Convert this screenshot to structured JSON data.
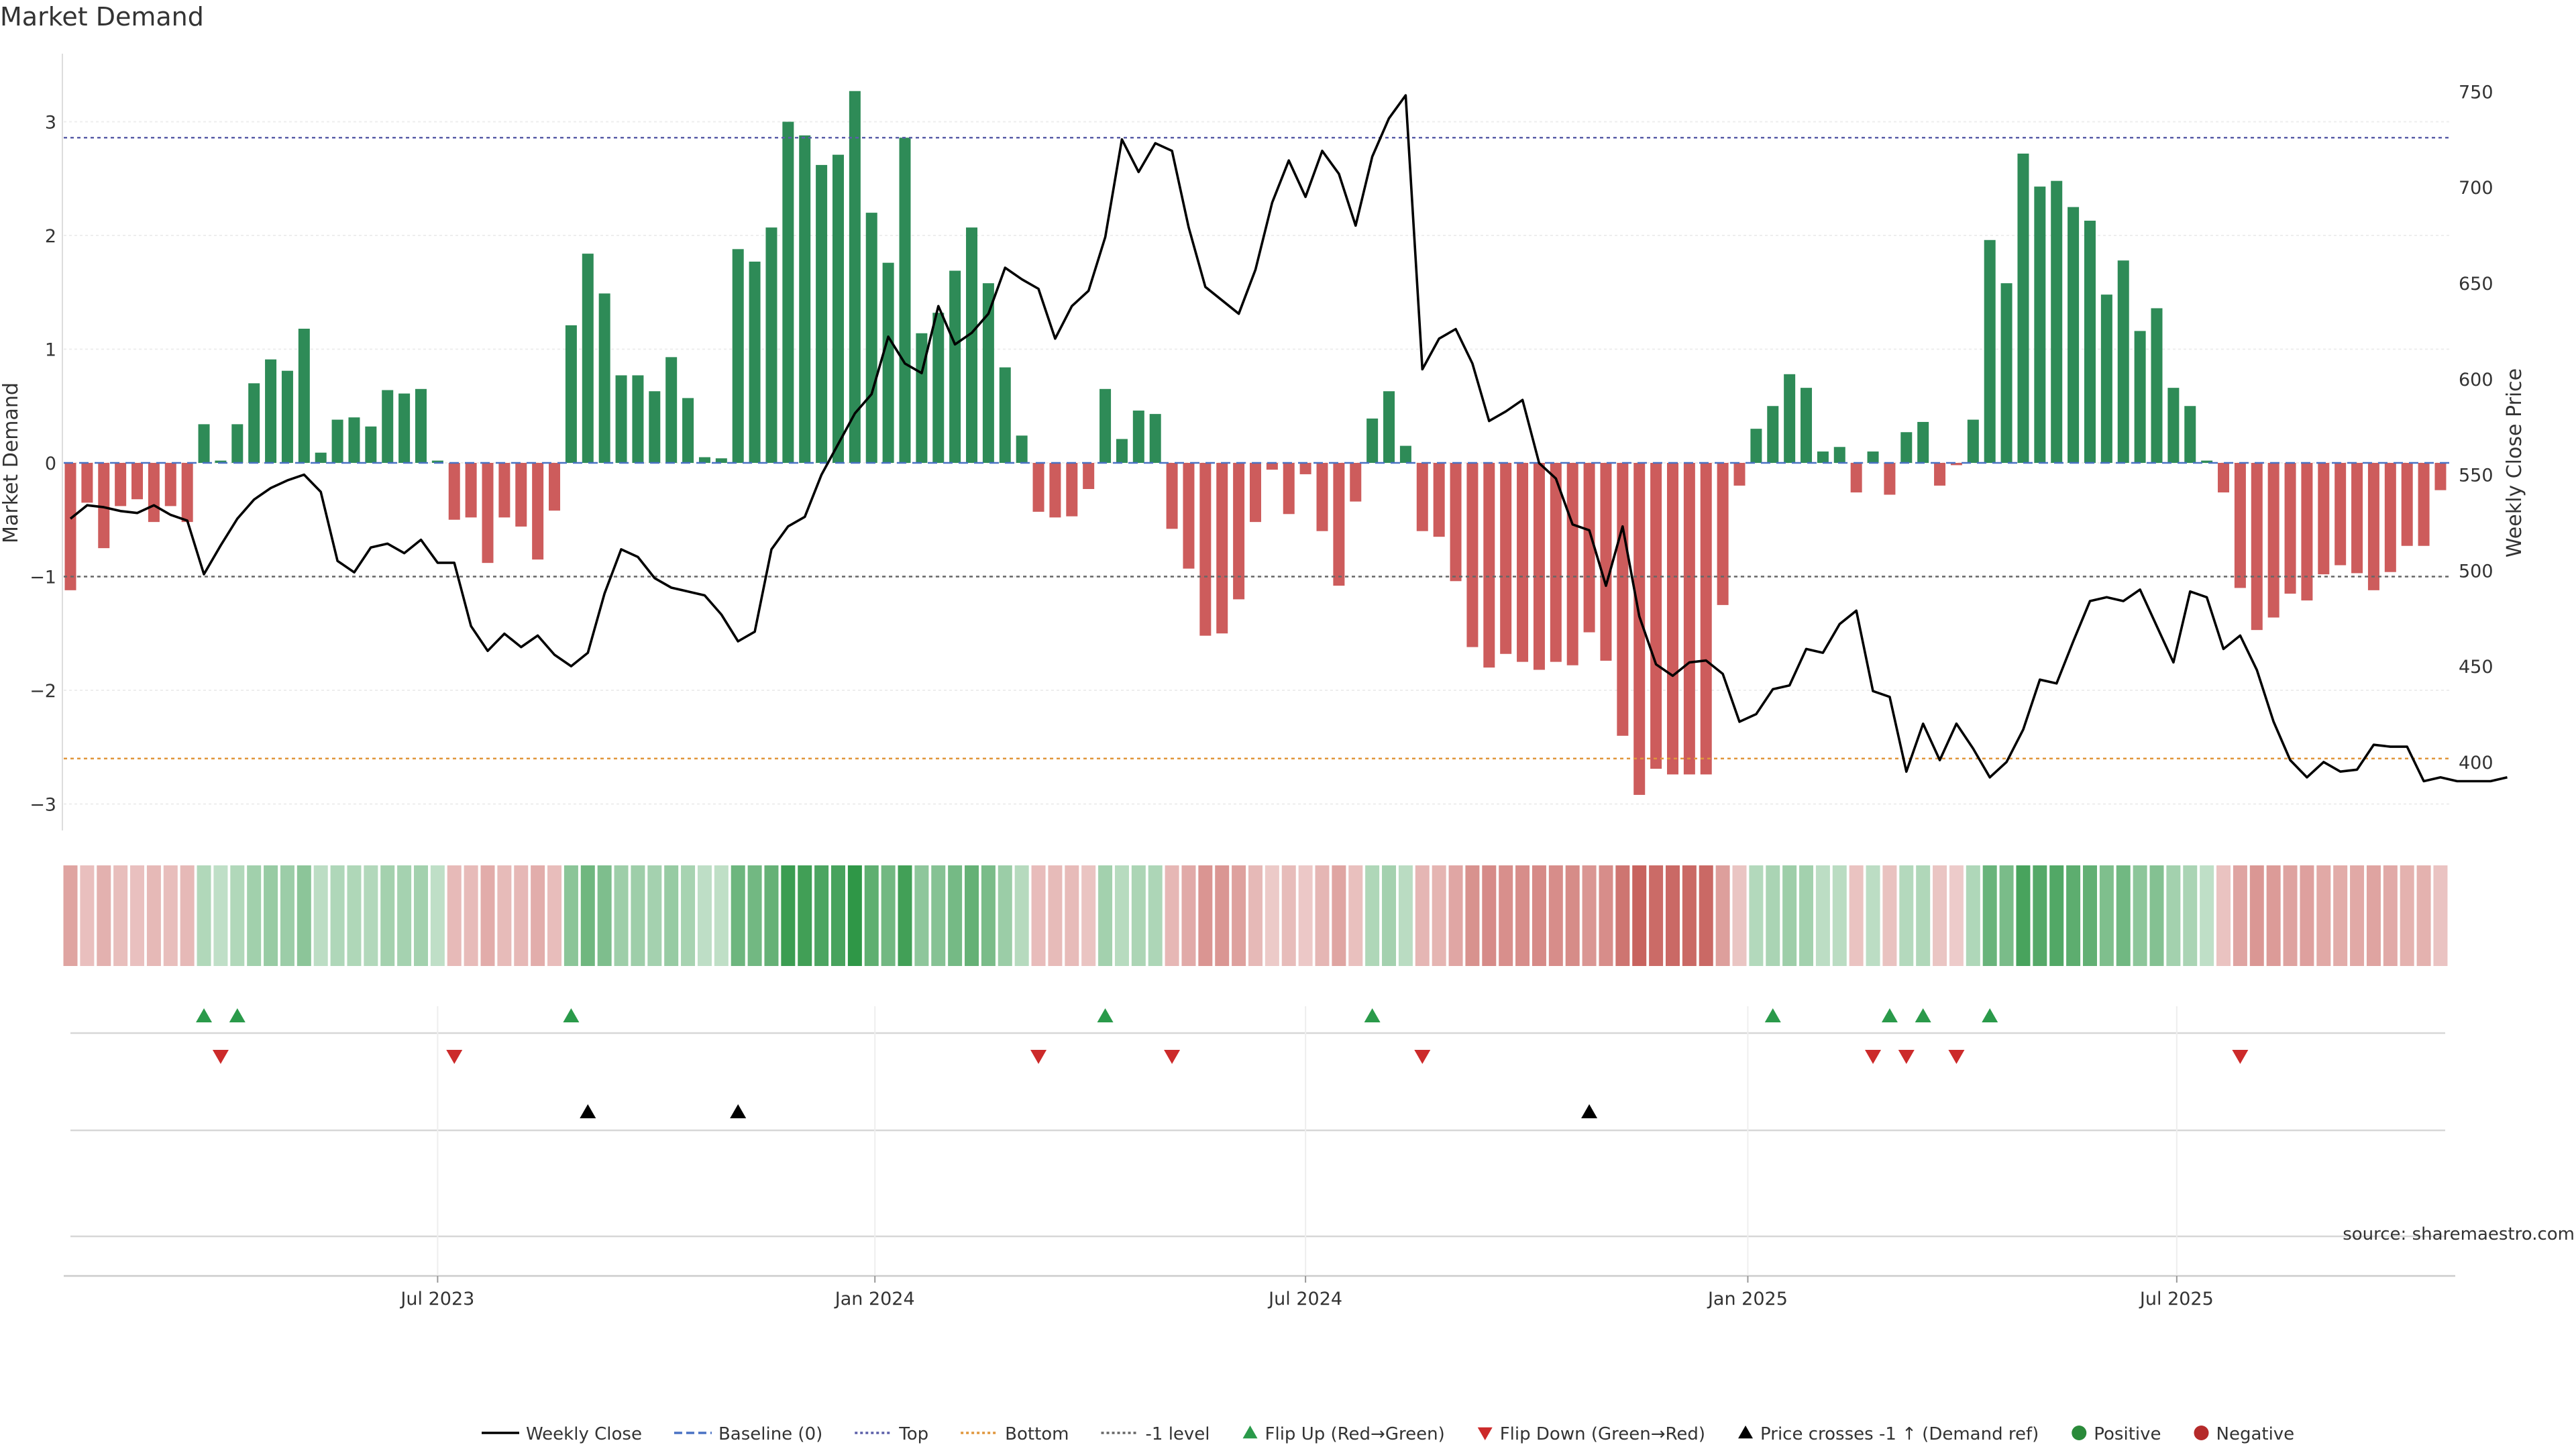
{
  "chart_data": {
    "type": "bar",
    "title": "Market Demand",
    "ylabel": "Market Demand",
    "y2label": "Weekly Close Price",
    "ylim": [
      -3.2,
      3.55
    ],
    "y2lim": [
      366,
      761
    ],
    "yticks": [
      -3,
      -2,
      -1,
      0,
      1,
      2,
      3
    ],
    "y2ticks": [
      400,
      450,
      500,
      550,
      600,
      650,
      700,
      750
    ],
    "reference_lines": {
      "top": 2.86,
      "bottom": -2.6,
      "minus_one": -1.0,
      "baseline": 0
    },
    "x_ticks": [
      {
        "label": "Jul 2023",
        "week": 22
      },
      {
        "label": "Jan 2024",
        "week": 48.2
      },
      {
        "label": "Jul 2024",
        "week": 74
      },
      {
        "label": "Jan 2025",
        "week": 100.5
      },
      {
        "label": "Jul 2025",
        "week": 126.2
      }
    ],
    "demand": [
      -1.12,
      -0.35,
      -0.75,
      -0.38,
      -0.32,
      -0.52,
      -0.38,
      -0.52,
      0.34,
      0.02,
      0.34,
      0.7,
      0.91,
      0.81,
      1.18,
      0.09,
      0.38,
      0.4,
      0.32,
      0.64,
      0.61,
      0.65,
      0.02,
      -0.5,
      -0.48,
      -0.88,
      -0.48,
      -0.56,
      -0.85,
      -0.42,
      1.21,
      1.84,
      1.49,
      0.77,
      0.77,
      0.63,
      0.93,
      0.57,
      0.05,
      0.04,
      1.88,
      1.77,
      2.07,
      3.0,
      2.88,
      2.62,
      2.71,
      3.27,
      2.2,
      1.76,
      2.86,
      1.14,
      1.32,
      1.69,
      2.07,
      1.58,
      0.84,
      0.24,
      -0.43,
      -0.48,
      -0.47,
      -0.23,
      0.65,
      0.21,
      0.46,
      0.43,
      -0.58,
      -0.93,
      -1.52,
      -1.5,
      -1.2,
      -0.52,
      -0.06,
      -0.45,
      -0.1,
      -0.6,
      -1.08,
      -0.34,
      0.39,
      0.63,
      0.15,
      -0.6,
      -0.65,
      -1.04,
      -1.62,
      -1.8,
      -1.68,
      -1.75,
      -1.82,
      -1.75,
      -1.78,
      -1.49,
      -1.74,
      -2.4,
      -2.92,
      -2.69,
      -2.74,
      -2.74,
      -2.74,
      -1.25,
      -0.2,
      0.3,
      0.5,
      0.78,
      0.66,
      0.1,
      0.14,
      -0.26,
      0.1,
      -0.28,
      0.27,
      0.36,
      -0.2,
      -0.02,
      0.38,
      1.96,
      1.58,
      2.72,
      2.43,
      2.48,
      2.25,
      2.13,
      1.48,
      1.78,
      1.16,
      1.36,
      0.66,
      0.5,
      0.02,
      -0.26,
      -1.1,
      -1.47,
      -1.36,
      -1.15,
      -1.21,
      -0.98,
      -0.9,
      -0.97,
      -1.12,
      -0.96,
      -0.73,
      -0.73,
      -0.24
    ],
    "weekly_close": [
      527,
      534,
      533,
      531,
      530,
      534,
      529,
      526,
      498,
      513,
      527,
      537,
      543,
      547,
      550,
      541,
      505,
      499,
      512,
      514,
      509,
      516,
      504,
      504,
      471,
      458,
      467,
      460,
      466,
      456,
      450,
      457,
      488,
      511,
      507,
      496,
      491,
      489,
      487,
      477,
      463,
      468,
      511,
      523,
      528,
      550,
      566,
      582,
      592,
      622,
      608,
      603,
      638,
      618,
      624,
      634,
      658,
      652,
      647,
      621,
      638,
      646,
      674,
      725,
      708,
      723,
      719,
      679,
      648,
      641,
      634,
      657,
      692,
      714,
      695,
      719,
      707,
      680,
      716,
      736,
      748,
      605,
      621,
      626,
      608,
      578,
      583,
      589,
      556,
      548,
      524,
      521,
      492,
      523,
      476,
      451,
      445,
      452,
      453,
      446,
      421,
      425,
      438,
      440,
      459,
      457,
      472,
      479,
      437,
      434,
      395,
      420,
      401,
      420,
      407,
      392,
      400,
      417,
      443,
      441,
      463,
      484,
      486,
      484,
      490,
      471,
      452,
      489,
      486,
      459,
      466,
      448,
      421,
      401,
      392,
      400,
      395,
      396,
      409,
      408,
      408,
      390,
      392,
      390,
      390,
      390,
      392
    ],
    "flip_up_weeks": [
      8,
      10,
      30,
      62,
      78,
      102,
      109,
      111,
      115
    ],
    "flip_down_weeks": [
      9,
      23,
      58,
      66,
      81,
      108,
      110,
      113,
      130
    ],
    "price_cross_weeks": [
      31,
      40,
      91
    ],
    "source_text": "source: sharemaestro.com",
    "legend": [
      {
        "label": "Weekly Close",
        "kind": "solid-line",
        "color": "#000000"
      },
      {
        "label": "Baseline (0)",
        "kind": "dashed-line",
        "color": "#4a72c4"
      },
      {
        "label": "Top",
        "kind": "dotted-line",
        "color": "#5b5fa8"
      },
      {
        "label": "Bottom",
        "kind": "dotted-line",
        "color": "#e0963b"
      },
      {
        "label": "-1 level",
        "kind": "dotted-line",
        "color": "#666666"
      },
      {
        "label": "Flip Up (Red→Green)",
        "kind": "triangle-up",
        "color": "#2a9a4a"
      },
      {
        "label": "Flip Down (Green→Red)",
        "kind": "triangle-down",
        "color": "#cc2a2a"
      },
      {
        "label": "Price crosses -1 ↑ (Demand ref)",
        "kind": "triangle-up",
        "color": "#000000"
      },
      {
        "label": "Positive",
        "kind": "dot",
        "color": "#2a8a3a"
      },
      {
        "label": "Negative",
        "kind": "dot",
        "color": "#b52a2a"
      }
    ],
    "colors": {
      "positive_bar": "#2e8b57",
      "negative_bar": "#cd5c5c",
      "flip_up": "#2a9a4a",
      "flip_down": "#cc2a2a",
      "price_cross": "#000000",
      "price_line": "#000000",
      "top_line": "#5b5fa8",
      "bottom_line": "#e0963b",
      "minus_one_line": "#666666",
      "baseline": "#4a72c4"
    }
  }
}
